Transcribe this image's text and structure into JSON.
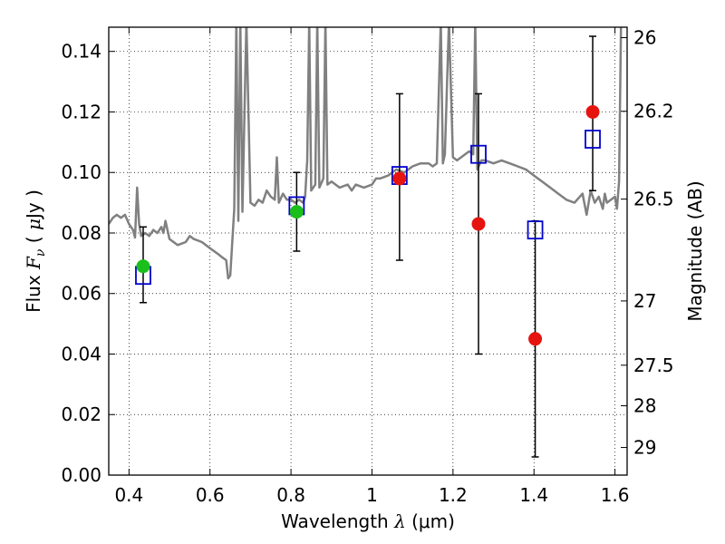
{
  "chart_data": {
    "type": "scatter",
    "xlabel": "Wavelength  λ (μm)",
    "xlabel_parts": {
      "pre": "Wavelength  ",
      "sym": "λ",
      "post": " (μm)"
    },
    "ylabel": "Flux  F_ν  ( μJy )",
    "ylabel_parts": {
      "pre": "Flux  ",
      "sym": "F",
      "sub": "ν",
      "post": "  ( ",
      "mu": "μ",
      "unit": "Jy )"
    },
    "y2label": "Magnitude (AB)",
    "xlim": [
      0.35,
      1.63
    ],
    "ylim": [
      0.0,
      0.148
    ],
    "grid": true,
    "x_ticks": [
      {
        "v": 0.4,
        "label": "0.4"
      },
      {
        "v": 0.6,
        "label": "0.6"
      },
      {
        "v": 0.8,
        "label": "0.8"
      },
      {
        "v": 1.0,
        "label": "1"
      },
      {
        "v": 1.2,
        "label": "1.2"
      },
      {
        "v": 1.4,
        "label": "1.4"
      },
      {
        "v": 1.6,
        "label": "1.6"
      }
    ],
    "y_ticks": [
      {
        "v": 0.0,
        "label": "0.00"
      },
      {
        "v": 0.02,
        "label": "0.02"
      },
      {
        "v": 0.04,
        "label": "0.04"
      },
      {
        "v": 0.06,
        "label": "0.06"
      },
      {
        "v": 0.08,
        "label": "0.08"
      },
      {
        "v": 0.1,
        "label": "0.10"
      },
      {
        "v": 0.12,
        "label": "0.12"
      },
      {
        "v": 0.14,
        "label": "0.14"
      }
    ],
    "y2_ticks": [
      {
        "mag": 26.0,
        "label": "26"
      },
      {
        "mag": 26.2,
        "label": "26.2"
      },
      {
        "mag": 26.5,
        "label": "26.5"
      },
      {
        "mag": 27.0,
        "label": "27"
      },
      {
        "mag": 27.5,
        "label": "27.5"
      },
      {
        "mag": 28.0,
        "label": "28"
      },
      {
        "mag": 29.0,
        "label": "29"
      }
    ],
    "series": [
      {
        "kind": "line",
        "color": "#808080",
        "points": [
          [
            0.35,
            0.083
          ],
          [
            0.36,
            0.085
          ],
          [
            0.37,
            0.086
          ],
          [
            0.38,
            0.085
          ],
          [
            0.39,
            0.086
          ],
          [
            0.4,
            0.083
          ],
          [
            0.41,
            0.081
          ],
          [
            0.415,
            0.0785
          ],
          [
            0.42,
            0.095
          ],
          [
            0.425,
            0.083
          ],
          [
            0.43,
            0.079
          ],
          [
            0.44,
            0.08
          ],
          [
            0.45,
            0.079
          ],
          [
            0.46,
            0.081
          ],
          [
            0.47,
            0.08
          ],
          [
            0.48,
            0.082
          ],
          [
            0.485,
            0.08
          ],
          [
            0.49,
            0.084
          ],
          [
            0.5,
            0.078
          ],
          [
            0.52,
            0.076
          ],
          [
            0.54,
            0.077
          ],
          [
            0.55,
            0.079
          ],
          [
            0.56,
            0.078
          ],
          [
            0.58,
            0.077
          ],
          [
            0.6,
            0.075
          ],
          [
            0.62,
            0.073
          ],
          [
            0.63,
            0.072
          ],
          [
            0.64,
            0.071
          ],
          [
            0.645,
            0.065
          ],
          [
            0.65,
            0.066
          ],
          [
            0.66,
            0.088
          ],
          [
            0.665,
            0.15
          ],
          [
            0.67,
            0.084
          ],
          [
            0.675,
            0.15
          ],
          [
            0.68,
            0.087
          ],
          [
            0.69,
            0.15
          ],
          [
            0.7,
            0.09
          ],
          [
            0.71,
            0.089
          ],
          [
            0.72,
            0.091
          ],
          [
            0.73,
            0.09
          ],
          [
            0.74,
            0.094
          ],
          [
            0.75,
            0.092
          ],
          [
            0.76,
            0.091
          ],
          [
            0.765,
            0.105
          ],
          [
            0.77,
            0.09
          ],
          [
            0.78,
            0.093
          ],
          [
            0.79,
            0.091
          ],
          [
            0.8,
            0.091
          ],
          [
            0.81,
            0.09
          ],
          [
            0.82,
            0.091
          ],
          [
            0.83,
            0.09
          ],
          [
            0.835,
            0.092
          ],
          [
            0.84,
            0.104
          ],
          [
            0.845,
            0.15
          ],
          [
            0.85,
            0.094
          ],
          [
            0.86,
            0.096
          ],
          [
            0.865,
            0.15
          ],
          [
            0.87,
            0.095
          ],
          [
            0.88,
            0.098
          ],
          [
            0.885,
            0.15
          ],
          [
            0.89,
            0.096
          ],
          [
            0.9,
            0.097
          ],
          [
            0.92,
            0.095
          ],
          [
            0.94,
            0.096
          ],
          [
            0.95,
            0.094
          ],
          [
            0.96,
            0.096
          ],
          [
            0.98,
            0.095
          ],
          [
            1.0,
            0.096
          ],
          [
            1.01,
            0.098
          ],
          [
            1.02,
            0.098
          ],
          [
            1.04,
            0.099
          ],
          [
            1.05,
            0.1
          ],
          [
            1.06,
            0.101
          ],
          [
            1.08,
            0.1
          ],
          [
            1.1,
            0.102
          ],
          [
            1.12,
            0.103
          ],
          [
            1.14,
            0.103
          ],
          [
            1.15,
            0.102
          ],
          [
            1.16,
            0.103
          ],
          [
            1.17,
            0.15
          ],
          [
            1.175,
            0.103
          ],
          [
            1.18,
            0.106
          ],
          [
            1.19,
            0.15
          ],
          [
            1.2,
            0.105
          ],
          [
            1.21,
            0.104
          ],
          [
            1.22,
            0.105
          ],
          [
            1.24,
            0.107
          ],
          [
            1.25,
            0.106
          ],
          [
            1.255,
            0.15
          ],
          [
            1.26,
            0.101
          ],
          [
            1.27,
            0.104
          ],
          [
            1.28,
            0.104
          ],
          [
            1.3,
            0.103
          ],
          [
            1.32,
            0.104
          ],
          [
            1.34,
            0.103
          ],
          [
            1.36,
            0.102
          ],
          [
            1.38,
            0.101
          ],
          [
            1.4,
            0.099
          ],
          [
            1.42,
            0.097
          ],
          [
            1.44,
            0.095
          ],
          [
            1.46,
            0.093
          ],
          [
            1.48,
            0.091
          ],
          [
            1.5,
            0.09
          ],
          [
            1.52,
            0.093
          ],
          [
            1.53,
            0.086
          ],
          [
            1.54,
            0.094
          ],
          [
            1.55,
            0.09
          ],
          [
            1.56,
            0.092
          ],
          [
            1.57,
            0.088
          ],
          [
            1.575,
            0.093
          ],
          [
            1.58,
            0.09
          ],
          [
            1.6,
            0.092
          ],
          [
            1.605,
            0.088
          ],
          [
            1.61,
            0.097
          ],
          [
            1.615,
            0.15
          ],
          [
            1.62,
            0.15
          ],
          [
            1.63,
            0.15
          ]
        ]
      },
      {
        "kind": "errorbar",
        "color": "#000000",
        "bars": [
          {
            "x": 0.435,
            "lo": 0.057,
            "hi": 0.082
          },
          {
            "x": 0.814,
            "lo": 0.074,
            "hi": 0.1
          },
          {
            "x": 1.068,
            "lo": 0.071,
            "hi": 0.126
          },
          {
            "x": 1.263,
            "lo": 0.04,
            "hi": 0.126
          },
          {
            "x": 1.403,
            "lo": 0.006,
            "hi": 0.084
          },
          {
            "x": 1.545,
            "lo": 0.094,
            "hi": 0.145
          }
        ]
      },
      {
        "kind": "square",
        "color": "#0000cc",
        "points": [
          [
            0.435,
            0.066
          ],
          [
            0.814,
            0.089
          ],
          [
            1.068,
            0.099
          ],
          [
            1.263,
            0.106
          ],
          [
            1.403,
            0.081
          ],
          [
            1.545,
            0.111
          ]
        ]
      },
      {
        "kind": "dot",
        "color": "#1bbf1b",
        "points": [
          [
            0.435,
            0.069
          ],
          [
            0.814,
            0.087
          ]
        ]
      },
      {
        "kind": "dot",
        "color": "#e6140f",
        "points": [
          [
            1.068,
            0.098
          ],
          [
            1.263,
            0.083
          ],
          [
            1.403,
            0.045
          ],
          [
            1.545,
            0.12
          ]
        ]
      }
    ]
  }
}
